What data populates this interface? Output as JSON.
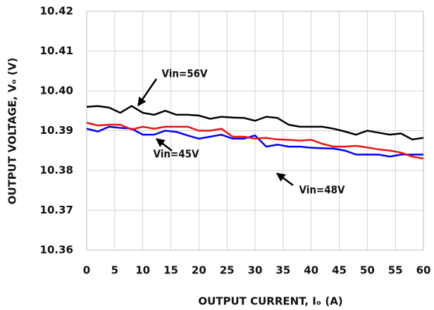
{
  "chart_data": {
    "type": "line",
    "x_label": "OUTPUT CURRENT, Iₒ (A)",
    "y_label": "OUTPUT VOLTAGE, Vₒ (V)",
    "x": [
      0,
      2,
      4,
      6,
      8,
      10,
      12,
      14,
      16,
      18,
      20,
      22,
      24,
      26,
      28,
      30,
      32,
      34,
      36,
      38,
      40,
      42,
      44,
      46,
      48,
      50,
      52,
      54,
      56,
      58,
      60
    ],
    "series": [
      {
        "name": "Vin=56V",
        "color": "#000000",
        "values": [
          10.396,
          10.3962,
          10.3958,
          10.3945,
          10.3962,
          10.3945,
          10.394,
          10.395,
          10.394,
          10.394,
          10.3938,
          10.393,
          10.3935,
          10.3933,
          10.3932,
          10.3925,
          10.3935,
          10.3932,
          10.3915,
          10.391,
          10.391,
          10.391,
          10.3905,
          10.3898,
          10.389,
          10.39,
          10.3895,
          10.389,
          10.3893,
          10.3878,
          10.3882
        ]
      },
      {
        "name": "Vin=45V",
        "color": "#0000ff",
        "values": [
          10.3905,
          10.3898,
          10.391,
          10.3907,
          10.3905,
          10.389,
          10.389,
          10.39,
          10.3897,
          10.3888,
          10.388,
          10.3885,
          10.389,
          10.388,
          10.388,
          10.3888,
          10.386,
          10.3865,
          10.386,
          10.386,
          10.3857,
          10.3856,
          10.3855,
          10.385,
          10.384,
          10.384,
          10.384,
          10.3835,
          10.384,
          10.384,
          10.384
        ]
      },
      {
        "name": "Vin=48V",
        "color": "#ee1111",
        "values": [
          10.392,
          10.3913,
          10.3915,
          10.3915,
          10.3903,
          10.391,
          10.3905,
          10.391,
          10.391,
          10.391,
          10.39,
          10.39,
          10.3905,
          10.3885,
          10.3885,
          10.388,
          10.3882,
          10.3878,
          10.3877,
          10.3875,
          10.3877,
          10.3867,
          10.386,
          10.386,
          10.3862,
          10.3858,
          10.3853,
          10.385,
          10.3845,
          10.3835,
          10.383
        ]
      }
    ],
    "xlim": [
      0,
      60
    ],
    "xticks": [
      0,
      5,
      10,
      15,
      20,
      25,
      30,
      35,
      40,
      45,
      50,
      55,
      60
    ],
    "ylim": [
      10.36,
      10.42
    ],
    "yticks": [
      {
        "value": 10.36,
        "label": "10.36"
      },
      10.37,
      10.38,
      10.39,
      {
        "value": 10.4,
        "label": "10.40"
      },
      10.41,
      10.42
    ],
    "grid": true
  }
}
